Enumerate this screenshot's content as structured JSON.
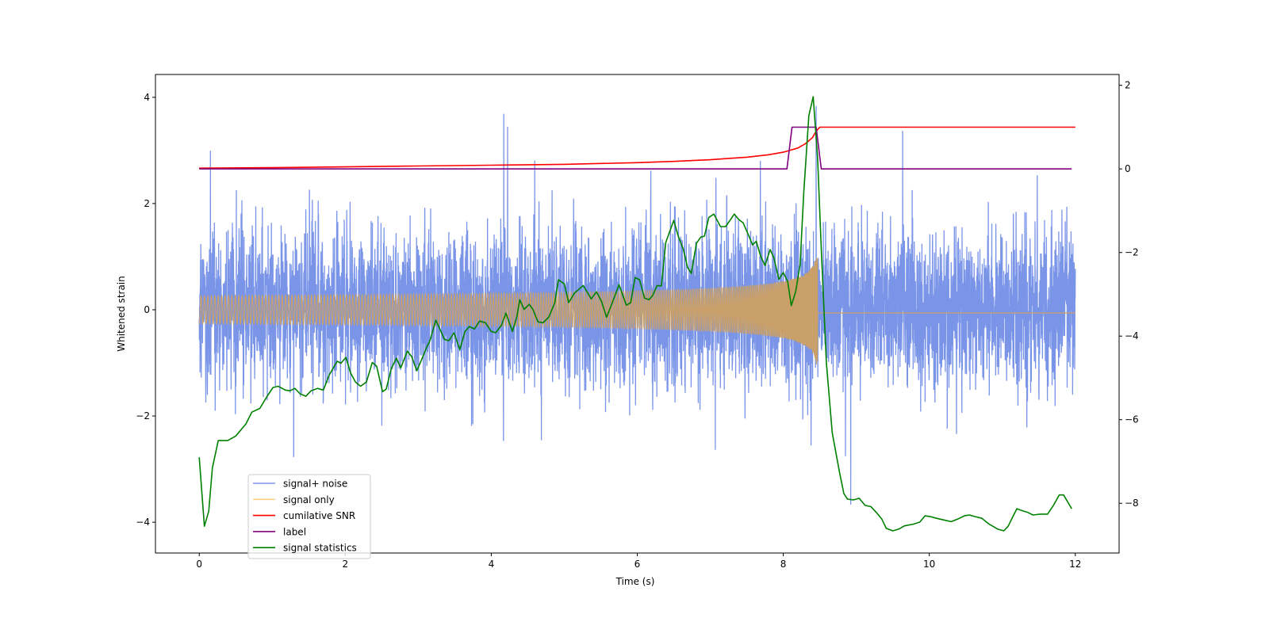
{
  "chart_data": {
    "type": "line",
    "xlabel": "Time (s)",
    "ylabel": "Whitened strain",
    "y2label": "",
    "xlim": [
      -0.6,
      12.6
    ],
    "ylim": [
      -4.58,
      4.43
    ],
    "y2lim": [
      -9.19,
      2.26
    ],
    "xticks": [
      0,
      2,
      4,
      6,
      8,
      10,
      12
    ],
    "yticks": [
      -4,
      -2,
      0,
      2,
      4
    ],
    "y2ticks": [
      -8,
      -6,
      -4,
      -2,
      0,
      2
    ],
    "grid": false,
    "legend_position": "lower-left",
    "series": [
      {
        "name": "signal+ noise",
        "axis": "left",
        "color": "#7a95e8",
        "kind": "noise",
        "t_range": [
          0,
          12
        ],
        "max": 4.0,
        "min": -4.15
      },
      {
        "name": "signal only",
        "axis": "left",
        "color": "#c9a06a",
        "legend_color": "#ffcf80",
        "kind": "chirp",
        "t_range": [
          0,
          12
        ],
        "merger_time": 8.47,
        "peak_amplitude": 1.2
      },
      {
        "name": "cumilative SNR",
        "axis": "right",
        "color": "#ff0000",
        "points": [
          [
            0,
            0.02
          ],
          [
            1,
            0.03
          ],
          [
            2,
            0.05
          ],
          [
            3,
            0.07
          ],
          [
            4,
            0.09
          ],
          [
            5,
            0.11
          ],
          [
            6,
            0.15
          ],
          [
            6.5,
            0.18
          ],
          [
            7,
            0.22
          ],
          [
            7.5,
            0.28
          ],
          [
            7.8,
            0.34
          ],
          [
            8,
            0.4
          ],
          [
            8.2,
            0.5
          ],
          [
            8.3,
            0.6
          ],
          [
            8.4,
            0.75
          ],
          [
            8.45,
            0.9
          ],
          [
            8.5,
            1.0
          ],
          [
            12,
            1.0
          ]
        ]
      },
      {
        "name": "label",
        "axis": "right",
        "color": "#800080",
        "points": [
          [
            0,
            0
          ],
          [
            8.05,
            0
          ],
          [
            8.12,
            1
          ],
          [
            8.45,
            1
          ],
          [
            8.52,
            0
          ],
          [
            11.95,
            0
          ]
        ]
      },
      {
        "name": "signal statistics",
        "axis": "right",
        "color": "#008000",
        "points": [
          [
            0,
            -6.9
          ],
          [
            0.07,
            -8.55
          ],
          [
            0.13,
            -8.19
          ],
          [
            0.18,
            -7.15
          ],
          [
            0.26,
            -6.5
          ],
          [
            0.39,
            -6.5
          ],
          [
            0.5,
            -6.39
          ],
          [
            0.64,
            -6.1
          ],
          [
            0.72,
            -5.82
          ],
          [
            0.83,
            -5.73
          ],
          [
            0.93,
            -5.44
          ],
          [
            1.01,
            -5.23
          ],
          [
            1.08,
            -5.2
          ],
          [
            1.18,
            -5.29
          ],
          [
            1.24,
            -5.31
          ],
          [
            1.31,
            -5.25
          ],
          [
            1.38,
            -5.38
          ],
          [
            1.46,
            -5.44
          ],
          [
            1.53,
            -5.31
          ],
          [
            1.62,
            -5.25
          ],
          [
            1.7,
            -5.29
          ],
          [
            1.78,
            -4.93
          ],
          [
            1.89,
            -4.6
          ],
          [
            1.94,
            -4.65
          ],
          [
            2.01,
            -4.51
          ],
          [
            2.07,
            -4.87
          ],
          [
            2.14,
            -5.1
          ],
          [
            2.21,
            -5.2
          ],
          [
            2.29,
            -5.1
          ],
          [
            2.37,
            -4.63
          ],
          [
            2.43,
            -4.72
          ],
          [
            2.51,
            -5.33
          ],
          [
            2.56,
            -5.27
          ],
          [
            2.63,
            -4.78
          ],
          [
            2.7,
            -4.53
          ],
          [
            2.76,
            -4.76
          ],
          [
            2.85,
            -4.36
          ],
          [
            2.91,
            -4.49
          ],
          [
            2.98,
            -4.83
          ],
          [
            3.04,
            -4.59
          ],
          [
            3.12,
            -4.25
          ],
          [
            3.16,
            -4.11
          ],
          [
            3.24,
            -3.62
          ],
          [
            3.29,
            -3.81
          ],
          [
            3.36,
            -4.08
          ],
          [
            3.42,
            -4.11
          ],
          [
            3.49,
            -3.92
          ],
          [
            3.57,
            -4.32
          ],
          [
            3.64,
            -3.89
          ],
          [
            3.7,
            -3.77
          ],
          [
            3.77,
            -3.83
          ],
          [
            3.84,
            -3.64
          ],
          [
            3.92,
            -3.68
          ],
          [
            4.0,
            -3.89
          ],
          [
            4.06,
            -3.92
          ],
          [
            4.14,
            -3.74
          ],
          [
            4.2,
            -3.45
          ],
          [
            4.29,
            -3.89
          ],
          [
            4.35,
            -3.54
          ],
          [
            4.39,
            -3.13
          ],
          [
            4.45,
            -3.36
          ],
          [
            4.52,
            -3.24
          ],
          [
            4.57,
            -3.36
          ],
          [
            4.64,
            -3.66
          ],
          [
            4.71,
            -3.68
          ],
          [
            4.79,
            -3.54
          ],
          [
            4.87,
            -3.2
          ],
          [
            4.92,
            -2.65
          ],
          [
            5.0,
            -2.75
          ],
          [
            5.06,
            -3.2
          ],
          [
            5.14,
            -2.97
          ],
          [
            5.26,
            -2.79
          ],
          [
            5.37,
            -3.11
          ],
          [
            5.44,
            -2.94
          ],
          [
            5.51,
            -3.17
          ],
          [
            5.58,
            -3.55
          ],
          [
            5.66,
            -3.19
          ],
          [
            5.75,
            -2.77
          ],
          [
            5.85,
            -3.26
          ],
          [
            5.91,
            -3.2
          ],
          [
            5.97,
            -2.6
          ],
          [
            6.03,
            -2.65
          ],
          [
            6.1,
            -3.09
          ],
          [
            6.16,
            -3.13
          ],
          [
            6.21,
            -3.03
          ],
          [
            6.27,
            -2.79
          ],
          [
            6.33,
            -2.8
          ],
          [
            6.39,
            -1.76
          ],
          [
            6.5,
            -1.23
          ],
          [
            6.56,
            -1.6
          ],
          [
            6.63,
            -1.92
          ],
          [
            6.69,
            -2.36
          ],
          [
            6.74,
            -2.5
          ],
          [
            6.81,
            -1.78
          ],
          [
            6.87,
            -1.63
          ],
          [
            6.92,
            -1.61
          ],
          [
            6.98,
            -1.16
          ],
          [
            7.05,
            -1.08
          ],
          [
            7.14,
            -1.38
          ],
          [
            7.21,
            -1.38
          ],
          [
            7.33,
            -1.08
          ],
          [
            7.39,
            -1.21
          ],
          [
            7.45,
            -1.29
          ],
          [
            7.53,
            -1.61
          ],
          [
            7.58,
            -1.82
          ],
          [
            7.63,
            -1.73
          ],
          [
            7.69,
            -2.09
          ],
          [
            7.75,
            -2.31
          ],
          [
            7.82,
            -1.93
          ],
          [
            7.87,
            -2.12
          ],
          [
            7.94,
            -2.64
          ],
          [
            8.0,
            -2.48
          ],
          [
            8.06,
            -2.69
          ],
          [
            8.11,
            -3.27
          ],
          [
            8.17,
            -2.94
          ],
          [
            8.23,
            -2.29
          ],
          [
            8.28,
            -0.57
          ],
          [
            8.35,
            1.27
          ],
          [
            8.41,
            1.73
          ],
          [
            8.47,
            0.25
          ],
          [
            8.52,
            -1.92
          ],
          [
            8.59,
            -4.63
          ],
          [
            8.67,
            -6.31
          ],
          [
            8.77,
            -7.26
          ],
          [
            8.83,
            -7.77
          ],
          [
            8.88,
            -7.9
          ],
          [
            8.96,
            -7.92
          ],
          [
            9.04,
            -7.88
          ],
          [
            9.12,
            -8.05
          ],
          [
            9.2,
            -8.08
          ],
          [
            9.27,
            -8.21
          ],
          [
            9.35,
            -8.38
          ],
          [
            9.41,
            -8.6
          ],
          [
            9.5,
            -8.66
          ],
          [
            9.58,
            -8.62
          ],
          [
            9.66,
            -8.54
          ],
          [
            9.78,
            -8.5
          ],
          [
            9.87,
            -8.45
          ],
          [
            9.94,
            -8.3
          ],
          [
            10.02,
            -8.32
          ],
          [
            10.1,
            -8.36
          ],
          [
            10.2,
            -8.4
          ],
          [
            10.3,
            -8.44
          ],
          [
            10.4,
            -8.37
          ],
          [
            10.48,
            -8.3
          ],
          [
            10.55,
            -8.28
          ],
          [
            10.63,
            -8.32
          ],
          [
            10.72,
            -8.36
          ],
          [
            10.82,
            -8.5
          ],
          [
            10.94,
            -8.62
          ],
          [
            11.02,
            -8.66
          ],
          [
            11.08,
            -8.55
          ],
          [
            11.15,
            -8.3
          ],
          [
            11.2,
            -8.13
          ],
          [
            11.28,
            -8.18
          ],
          [
            11.35,
            -8.22
          ],
          [
            11.42,
            -8.28
          ],
          [
            11.52,
            -8.26
          ],
          [
            11.62,
            -8.26
          ],
          [
            11.7,
            -8.05
          ],
          [
            11.78,
            -7.8
          ],
          [
            11.84,
            -7.8
          ],
          [
            11.95,
            -8.13
          ]
        ]
      }
    ]
  }
}
